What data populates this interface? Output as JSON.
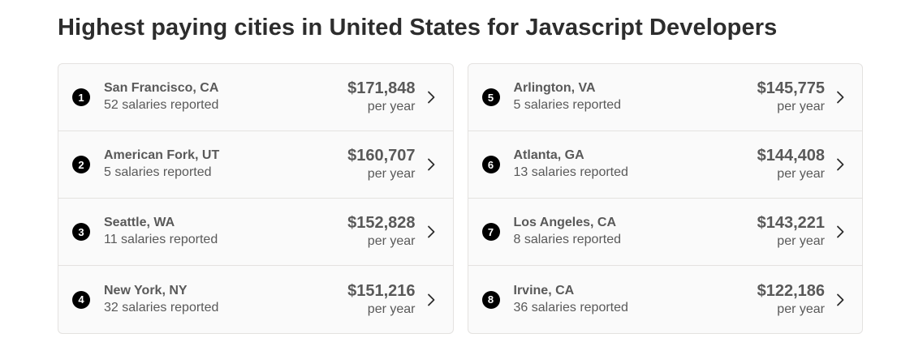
{
  "title": "Highest paying cities in United States for Javascript Developers",
  "left_column": [
    {
      "rank": "1",
      "city": "San Francisco, CA",
      "reports": "52 salaries reported",
      "salary": "$171,848",
      "period": "per year"
    },
    {
      "rank": "2",
      "city": "American Fork, UT",
      "reports": "5 salaries reported",
      "salary": "$160,707",
      "period": "per year"
    },
    {
      "rank": "3",
      "city": "Seattle, WA",
      "reports": "11 salaries reported",
      "salary": "$152,828",
      "period": "per year"
    },
    {
      "rank": "4",
      "city": "New York, NY",
      "reports": "32 salaries reported",
      "salary": "$151,216",
      "period": "per year"
    }
  ],
  "right_column": [
    {
      "rank": "5",
      "city": "Arlington, VA",
      "reports": "5 salaries reported",
      "salary": "$145,775",
      "period": "per year"
    },
    {
      "rank": "6",
      "city": "Atlanta, GA",
      "reports": "13 salaries reported",
      "salary": "$144,408",
      "period": "per year"
    },
    {
      "rank": "7",
      "city": "Los Angeles, CA",
      "reports": "8 salaries reported",
      "salary": "$143,221",
      "period": "per year"
    },
    {
      "rank": "8",
      "city": "Irvine, CA",
      "reports": "36 salaries reported",
      "salary": "$122,186",
      "period": "per year"
    }
  ],
  "icons": {
    "row_arrow": "chevron-right-icon"
  },
  "colors": {
    "text_dark": "#2d2d2d",
    "text_muted": "#595959",
    "rank_badge": "#000000",
    "border": "#e4e2e0",
    "card_bg": "#fafafa"
  }
}
